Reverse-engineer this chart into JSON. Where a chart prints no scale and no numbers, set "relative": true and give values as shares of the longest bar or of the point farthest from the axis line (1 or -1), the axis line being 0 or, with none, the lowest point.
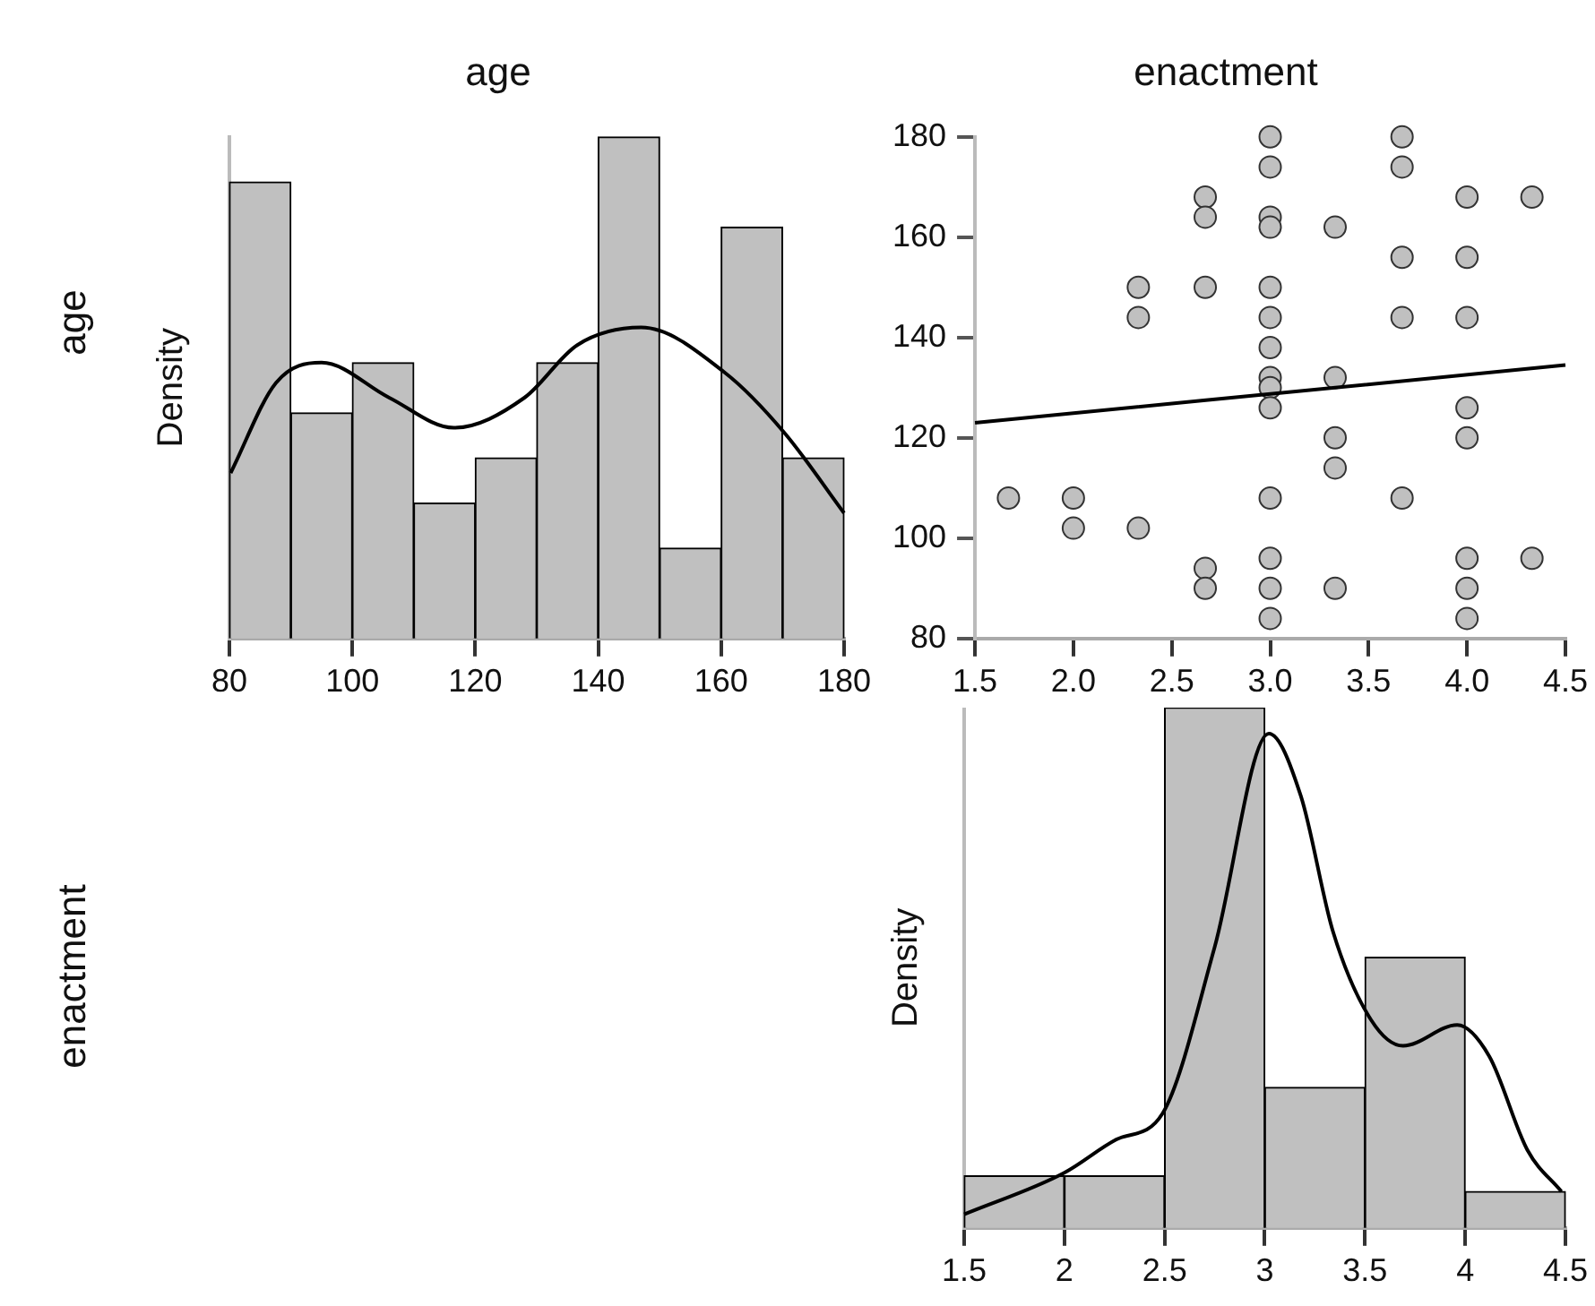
{
  "chart_data": [
    {
      "type": "histogram",
      "title": "age",
      "ylabel": "Density",
      "annotations": [
        "age"
      ],
      "relative": true,
      "bins": [
        80,
        90,
        100,
        110,
        120,
        130,
        140,
        150,
        160,
        170,
        180
      ],
      "values": [
        0.91,
        0.45,
        0.55,
        0.27,
        0.36,
        0.55,
        1,
        0.18,
        0.82,
        0.36
      ],
      "color": "#c0c0c0",
      "xlim": [
        80,
        180
      ],
      "xticks": [
        80,
        100,
        120,
        140,
        160,
        180
      ],
      "series": [
        {
          "type": "line",
          "color": "#000000",
          "x": [
            80.2,
            87.6,
            95,
            106,
            116.5,
            128,
            136.6,
            147,
            160.6,
            170.3,
            180
          ],
          "values": [
            0.33,
            0.51,
            0.55,
            0.48,
            0.42,
            0.48,
            0.585,
            0.62,
            0.53,
            0.41,
            0.25
          ]
        }
      ]
    },
    {
      "type": "scatter",
      "title": "enactment",
      "xlim": [
        1.5,
        4.5
      ],
      "xticks": [
        1.5,
        {
          "value": 2,
          "label": "2.0"
        },
        2.5,
        {
          "value": 3,
          "label": "3.0"
        },
        3.5,
        {
          "value": 4,
          "label": "4.0"
        },
        4.5
      ],
      "ylim": [
        80,
        180
      ],
      "yticks": [
        80,
        100,
        120,
        140,
        160,
        180
      ],
      "series": [
        {
          "type": "scatter",
          "marker": "circle",
          "color": "#c0c0c0",
          "x": [
            1.67,
            2,
            2,
            2.33,
            2.33,
            2.33,
            2.67,
            2.67,
            2.67,
            2.67,
            2.67,
            3,
            3,
            3,
            3,
            3,
            3,
            3,
            3,
            3,
            3,
            3,
            3,
            3,
            3,
            3.33,
            3.33,
            3.33,
            3.33,
            3.33,
            3.67,
            3.67,
            3.67,
            3.67,
            3.67,
            4,
            4,
            4,
            4,
            4,
            4,
            4,
            4,
            4.33,
            4.33
          ],
          "values": [
            108,
            108,
            102,
            150,
            144,
            102,
            168,
            164,
            150,
            94,
            90,
            180,
            174,
            164,
            162,
            150,
            144,
            138,
            132,
            130,
            126,
            108,
            96,
            90,
            84,
            162,
            132,
            120,
            114,
            90,
            180,
            174,
            156,
            144,
            108,
            168,
            156,
            144,
            126,
            120,
            96,
            90,
            84,
            168,
            96
          ]
        },
        {
          "type": "line",
          "color": "#000000",
          "x": [
            1.5,
            4.5
          ],
          "values": [
            123,
            134.5
          ]
        }
      ]
    },
    {
      "type": "histogram",
      "ylabel": "Density",
      "annotations": [
        "enactment"
      ],
      "relative": true,
      "bins": [
        1.5,
        2,
        2.5,
        3,
        3.5,
        4,
        4.5
      ],
      "values": [
        0.1,
        0.1,
        1,
        0.27,
        0.52,
        0.07
      ],
      "color": "#c0c0c0",
      "xlim": [
        1.5,
        4.5
      ],
      "xticks": [
        1.5,
        2,
        2.5,
        3,
        3.5,
        4,
        4.5
      ],
      "series": [
        {
          "type": "line",
          "color": "#000000",
          "x": [
            1.5,
            2,
            2.26,
            2.49,
            2.75,
            3.02,
            3.18,
            3.34,
            3.53,
            3.69,
            3.96,
            4.12,
            4.31,
            4.48
          ],
          "values": [
            0.026,
            0.106,
            0.17,
            0.22,
            0.54,
            0.95,
            0.83,
            0.57,
            0.4,
            0.35,
            0.39,
            0.33,
            0.15,
            0.07
          ]
        }
      ]
    }
  ]
}
